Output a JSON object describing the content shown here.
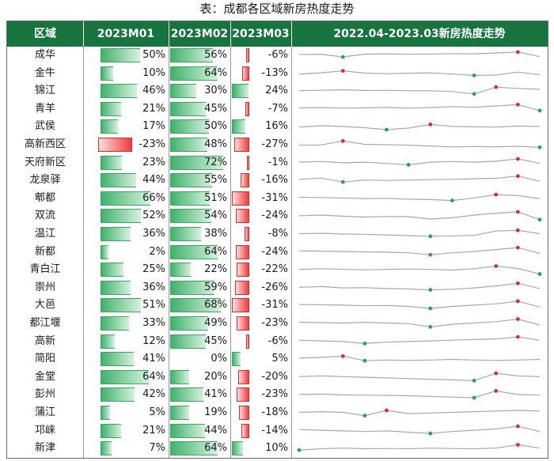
{
  "title": "表：成都各区域新房热度走势",
  "header": {
    "region": "区域",
    "m01": "2023M01",
    "m02": "2023M02",
    "m03": "2023M03",
    "trend": "2022.04-2023.03新房热度走势"
  },
  "colors": {
    "header_bg": "#17743f",
    "positive": "#3fb26b",
    "negative": "#ef3c3c",
    "spark_line": "#a8a8a8",
    "spark_high": "#e02b2b",
    "spark_low": "#2e9e5a"
  },
  "chart_data": {
    "type": "table",
    "columns": [
      "区域",
      "2023M01",
      "2023M02",
      "2023M03",
      "2022.04-2023.03新房热度走势"
    ],
    "bar_scale_max_pct": 72,
    "rows": [
      {
        "region": "成华",
        "m01": "50%",
        "m02": "56%",
        "m03": "-6%",
        "m01_v": 50,
        "m02_v": 56,
        "m03_v": -6,
        "trend": [
          0.58,
          0.6,
          0.4,
          0.61,
          0.63,
          0.6,
          0.62,
          0.65,
          0.63,
          0.7,
          0.77,
          0.42
        ]
      },
      {
        "region": "金牛",
        "m01": "10%",
        "m02": "64%",
        "m03": "-13%",
        "m01_v": 10,
        "m02_v": 64,
        "m03_v": -13,
        "trend": [
          0.45,
          0.55,
          0.7,
          0.53,
          0.48,
          0.52,
          0.55,
          0.45,
          0.35,
          0.38,
          0.6,
          0.4
        ]
      },
      {
        "region": "锦江",
        "m01": "46%",
        "m02": "30%",
        "m03": "24%",
        "m01_v": 46,
        "m02_v": 30,
        "m03_v": 24,
        "trend": [
          0.55,
          0.58,
          0.62,
          0.56,
          0.58,
          0.55,
          0.54,
          0.48,
          0.3,
          0.82,
          0.72,
          0.65
        ]
      },
      {
        "region": "青羊",
        "m01": "21%",
        "m02": "45%",
        "m03": "-7%",
        "m01_v": 21,
        "m02_v": 45,
        "m03_v": -7,
        "trend": [
          0.6,
          0.62,
          0.58,
          0.6,
          0.63,
          0.58,
          0.62,
          0.7,
          0.65,
          0.75,
          0.85,
          0.4
        ]
      },
      {
        "region": "武侯",
        "m01": "17%",
        "m02": "50%",
        "m03": "16%",
        "m01_v": 17,
        "m02_v": 50,
        "m03_v": 16,
        "trend": [
          0.5,
          0.6,
          0.55,
          0.45,
          0.3,
          0.42,
          0.7,
          0.55,
          0.52,
          0.5,
          0.58,
          0.55
        ]
      },
      {
        "region": "高新西区",
        "m01": "-23%",
        "m02": "48%",
        "m03": "-27%",
        "m01_v": -23,
        "m02_v": 48,
        "m03_v": -27,
        "trend": [
          0.48,
          0.5,
          0.8,
          0.55,
          0.52,
          0.48,
          0.42,
          0.35,
          0.38,
          0.36,
          0.4,
          0.32
        ]
      },
      {
        "region": "天府新区",
        "m01": "23%",
        "m02": "72%",
        "m03": "-1%",
        "m01_v": 23,
        "m02_v": 72,
        "m03_v": -1,
        "trend": [
          0.55,
          0.6,
          0.5,
          0.55,
          0.45,
          0.35,
          0.55,
          0.6,
          0.55,
          0.62,
          0.8,
          0.45
        ]
      },
      {
        "region": "龙泉驿",
        "m01": "44%",
        "m02": "55%",
        "m03": "-16%",
        "m01_v": 44,
        "m02_v": 55,
        "m03_v": -16,
        "trend": [
          0.6,
          0.7,
          0.4,
          0.55,
          0.52,
          0.55,
          0.58,
          0.6,
          0.65,
          0.68,
          0.85,
          0.45
        ]
      },
      {
        "region": "郫都",
        "m01": "66%",
        "m02": "51%",
        "m03": "-31%",
        "m01_v": 66,
        "m02_v": 51,
        "m03_v": -31,
        "trend": [
          0.6,
          0.58,
          0.55,
          0.5,
          0.52,
          0.45,
          0.42,
          0.35,
          0.55,
          0.8,
          0.72,
          0.5
        ]
      },
      {
        "region": "双流",
        "m01": "52%",
        "m02": "54%",
        "m03": "-24%",
        "m01_v": 52,
        "m02_v": 54,
        "m03_v": -24,
        "trend": [
          0.55,
          0.6,
          0.52,
          0.45,
          0.5,
          0.48,
          0.3,
          0.4,
          0.6,
          0.75,
          0.85,
          0.25
        ]
      },
      {
        "region": "温江",
        "m01": "36%",
        "m02": "38%",
        "m03": "-8%",
        "m01_v": 36,
        "m02_v": 38,
        "m03_v": -8,
        "trend": [
          0.55,
          0.58,
          0.52,
          0.5,
          0.45,
          0.4,
          0.35,
          0.38,
          0.42,
          0.75,
          0.8,
          0.55
        ]
      },
      {
        "region": "新都",
        "m01": "2%",
        "m02": "64%",
        "m03": "-24%",
        "m01_v": 2,
        "m02_v": 64,
        "m03_v": -24,
        "trend": [
          0.6,
          0.58,
          0.55,
          0.52,
          0.5,
          0.45,
          0.3,
          0.45,
          0.55,
          0.7,
          0.85,
          0.4
        ]
      },
      {
        "region": "青白江",
        "m01": "25%",
        "m02": "22%",
        "m03": "-22%",
        "m01_v": 25,
        "m02_v": 22,
        "m03_v": -22,
        "trend": [
          0.55,
          0.6,
          0.55,
          0.52,
          0.55,
          0.58,
          0.55,
          0.5,
          0.6,
          0.8,
          0.62,
          0.2
        ]
      },
      {
        "region": "崇州",
        "m01": "36%",
        "m02": "59%",
        "m03": "-26%",
        "m01_v": 36,
        "m02_v": 59,
        "m03_v": -26,
        "trend": [
          0.55,
          0.6,
          0.5,
          0.52,
          0.45,
          0.42,
          0.35,
          0.4,
          0.5,
          0.65,
          0.85,
          0.45
        ]
      },
      {
        "region": "大邑",
        "m01": "51%",
        "m02": "68%",
        "m03": "-31%",
        "m01_v": 51,
        "m02_v": 68,
        "m03_v": -31,
        "trend": [
          0.6,
          0.58,
          0.55,
          0.5,
          0.52,
          0.45,
          0.3,
          0.45,
          0.55,
          0.65,
          0.85,
          0.4
        ]
      },
      {
        "region": "都江堰",
        "m01": "33%",
        "m02": "49%",
        "m03": "-23%",
        "m01_v": 33,
        "m02_v": 49,
        "m03_v": -23,
        "trend": [
          0.6,
          0.58,
          0.55,
          0.6,
          0.55,
          0.5,
          0.25,
          0.45,
          0.55,
          0.65,
          0.85,
          0.4
        ]
      },
      {
        "region": "高新",
        "m01": "12%",
        "m02": "45%",
        "m03": "-6%",
        "m01_v": 12,
        "m02_v": 45,
        "m03_v": -6,
        "trend": [
          0.6,
          0.55,
          0.5,
          0.35,
          0.45,
          0.5,
          0.55,
          0.6,
          0.65,
          0.7,
          0.85,
          0.6
        ]
      },
      {
        "region": "简阳",
        "m01": "41%",
        "m02": "0%",
        "m03": "5%",
        "m01_v": 41,
        "m02_v": 0,
        "m03_v": 5,
        "trend": [
          0.6,
          0.65,
          0.75,
          0.4,
          0.45,
          0.42,
          0.45,
          0.5,
          0.45,
          0.42,
          0.45,
          0.5
        ]
      },
      {
        "region": "金堂",
        "m01": "64%",
        "m02": "20%",
        "m03": "-20%",
        "m01_v": 64,
        "m02_v": 20,
        "m03_v": -20,
        "trend": [
          0.55,
          0.6,
          0.55,
          0.5,
          0.45,
          0.4,
          0.35,
          0.3,
          0.25,
          0.8,
          0.6,
          0.55
        ]
      },
      {
        "region": "彭州",
        "m01": "42%",
        "m02": "41%",
        "m03": "-23%",
        "m01_v": 42,
        "m02_v": 41,
        "m03_v": -23,
        "trend": [
          0.55,
          0.58,
          0.52,
          0.5,
          0.48,
          0.45,
          0.4,
          0.35,
          0.3,
          0.82,
          0.55,
          0.5
        ]
      },
      {
        "region": "蒲江",
        "m01": "5%",
        "m02": "19%",
        "m03": "-18%",
        "m01_v": 5,
        "m02_v": 19,
        "m03_v": -18,
        "trend": [
          0.55,
          0.6,
          0.55,
          0.3,
          0.7,
          0.45,
          0.5,
          0.55,
          0.6,
          0.65,
          0.7,
          0.65
        ]
      },
      {
        "region": "邛崃",
        "m01": "21%",
        "m02": "44%",
        "m03": "-14%",
        "m01_v": 21,
        "m02_v": 44,
        "m03_v": -14,
        "trend": [
          0.6,
          0.55,
          0.5,
          0.45,
          0.5,
          0.4,
          0.3,
          0.45,
          0.55,
          0.65,
          0.85,
          0.45
        ]
      },
      {
        "region": "新津",
        "m01": "7%",
        "m02": "64%",
        "m03": "10%",
        "m01_v": 7,
        "m02_v": 64,
        "m03_v": 10,
        "trend": [
          0.4,
          0.5,
          0.55,
          0.5,
          0.52,
          0.5,
          0.55,
          0.52,
          0.5,
          0.55,
          0.8,
          0.55
        ]
      }
    ]
  }
}
